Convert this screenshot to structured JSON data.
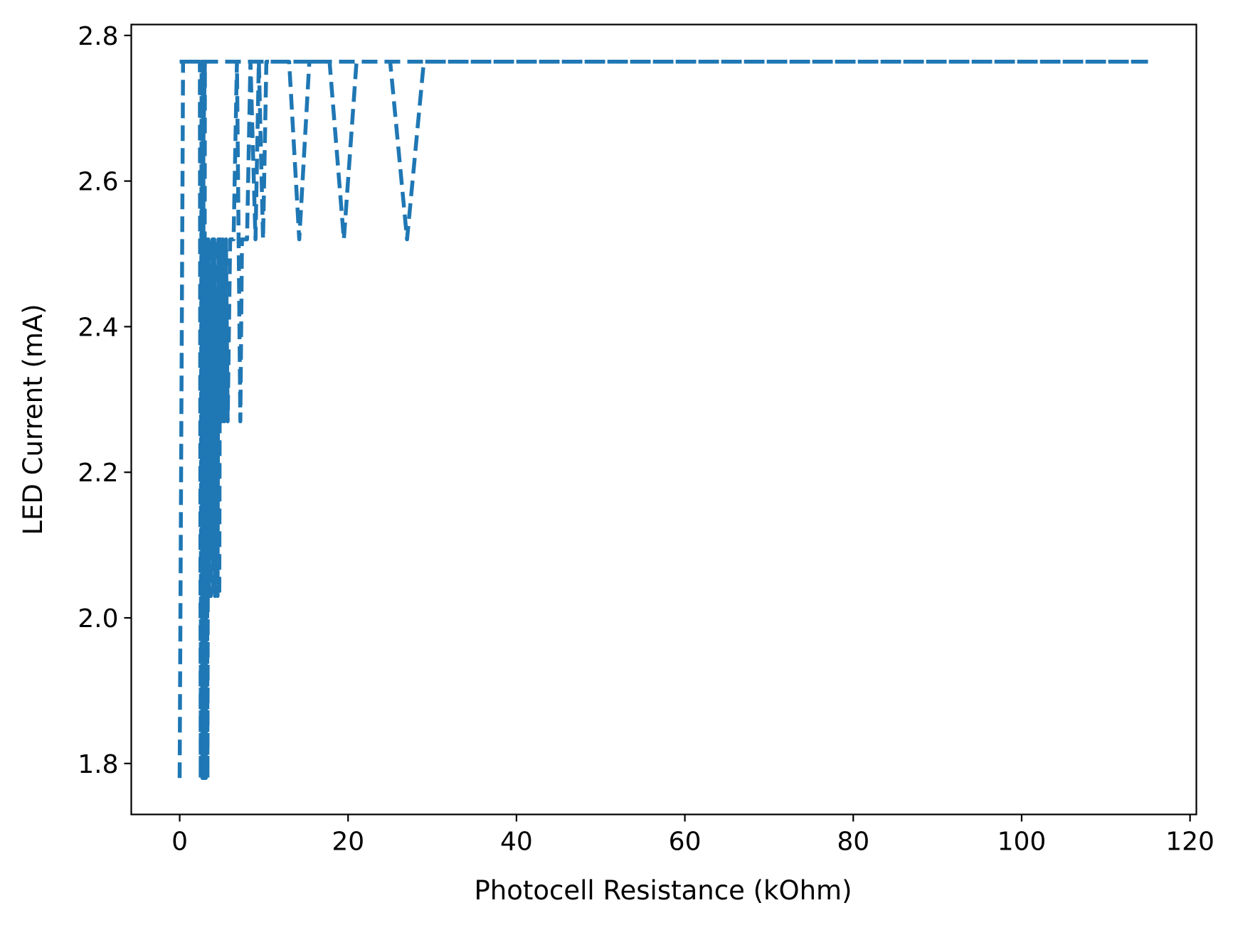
{
  "chart_data": {
    "type": "line",
    "title": "",
    "xlabel": "Photocell Resistance (kOhm)",
    "ylabel": "LED Current (mA)",
    "xlim": [
      -5.75,
      120.75
    ],
    "ylim": [
      1.73,
      2.815
    ],
    "xticks": [
      0,
      20,
      40,
      60,
      80,
      100,
      120
    ],
    "yticks": [
      1.8,
      2.0,
      2.2,
      2.4,
      2.6,
      2.8
    ],
    "xtick_labels": [
      "0",
      "20",
      "40",
      "60",
      "80",
      "100",
      "120"
    ],
    "ytick_labels": [
      "1.8",
      "2.0",
      "2.2",
      "2.4",
      "2.6",
      "2.8"
    ],
    "grid": false,
    "legend": "none",
    "line_style": "dashed",
    "color": "#1f77b4",
    "series": [
      {
        "x": [
          0.0,
          0.4,
          2.3,
          2.4,
          2.5,
          2.6,
          2.7,
          2.8,
          2.9,
          3.0,
          2.6,
          2.7,
          2.8,
          2.9,
          3.0,
          3.1,
          3.2,
          3.3,
          3.4,
          3.5,
          3.6,
          3.7,
          3.9,
          4.0,
          4.1,
          4.2,
          4.3,
          4.5,
          4.6,
          4.7,
          4.8,
          5.0,
          5.1,
          5.3,
          5.5,
          5.7,
          6.0,
          6.4,
          6.8,
          7.0,
          7.2,
          7.4,
          7.6,
          8.0,
          8.4,
          9.0,
          9.4,
          9.9,
          10.3,
          10.8,
          11.3,
          12.0,
          13.0,
          14.2,
          15.4,
          16.6,
          17.8,
          19.5,
          21.0,
          22.4,
          25.0,
          27.0,
          29.0,
          30.8,
          40.0,
          60.0,
          80.0,
          100.0,
          115.0
        ],
        "y": [
          1.78,
          2.764,
          2.764,
          2.764,
          1.78,
          2.764,
          1.78,
          2.764,
          1.78,
          2.764,
          2.52,
          1.78,
          2.52,
          1.78,
          2.52,
          1.78,
          2.52,
          1.78,
          2.52,
          2.03,
          2.52,
          2.03,
          2.52,
          2.03,
          2.52,
          2.03,
          2.52,
          2.03,
          2.52,
          2.03,
          2.52,
          2.27,
          2.52,
          2.27,
          2.52,
          2.27,
          2.52,
          2.52,
          2.764,
          2.52,
          2.27,
          2.52,
          2.52,
          2.52,
          2.764,
          2.52,
          2.764,
          2.52,
          2.764,
          2.764,
          2.764,
          2.764,
          2.764,
          2.52,
          2.764,
          2.764,
          2.764,
          2.52,
          2.764,
          2.764,
          2.764,
          2.52,
          2.764,
          2.764,
          2.764,
          2.764,
          2.764,
          2.764,
          2.764
        ]
      },
      {
        "x": [
          0.0,
          115.0
        ],
        "y": [
          2.764,
          2.764
        ]
      }
    ]
  }
}
